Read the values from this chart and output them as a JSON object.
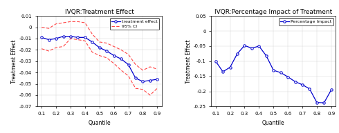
{
  "quantiles": [
    0.1,
    0.15,
    0.2,
    0.25,
    0.3,
    0.35,
    0.4,
    0.45,
    0.5,
    0.55,
    0.6,
    0.65,
    0.7,
    0.75,
    0.8,
    0.85,
    0.9
  ],
  "treatment_effect": [
    -0.009,
    -0.011,
    -0.01,
    -0.008,
    -0.008,
    -0.009,
    -0.009,
    -0.013,
    -0.018,
    -0.021,
    -0.025,
    -0.028,
    -0.033,
    -0.045,
    -0.048,
    -0.047,
    -0.046
  ],
  "ci_upper": [
    0.0,
    -0.001,
    0.003,
    0.004,
    0.005,
    0.005,
    0.004,
    -0.006,
    -0.013,
    -0.014,
    -0.017,
    -0.02,
    -0.024,
    -0.033,
    -0.038,
    -0.035,
    -0.037
  ],
  "ci_lower": [
    -0.019,
    -0.021,
    -0.018,
    -0.017,
    -0.01,
    -0.011,
    -0.012,
    -0.022,
    -0.025,
    -0.027,
    -0.032,
    -0.038,
    -0.043,
    -0.054,
    -0.055,
    -0.06,
    -0.054
  ],
  "percentage_impact": [
    -0.1,
    -0.135,
    -0.12,
    -0.075,
    -0.048,
    -0.057,
    -0.05,
    -0.082,
    -0.13,
    -0.138,
    -0.152,
    -0.168,
    -0.178,
    -0.192,
    -0.237,
    -0.238,
    -0.195
  ],
  "left_title": "IVQR:Treatment Effect",
  "right_title": "IVQR:Percentage Impact of Treatment",
  "xlabel": "Quantile",
  "ylabel": "Treatment Effect",
  "left_ylim": [
    -0.07,
    0.01
  ],
  "right_ylim": [
    -0.25,
    0.05
  ],
  "xticks": [
    0.1,
    0.2,
    0.3,
    0.4,
    0.5,
    0.6,
    0.7,
    0.8,
    0.9
  ],
  "left_yticks": [
    -0.07,
    -0.06,
    -0.05,
    -0.04,
    -0.03,
    -0.02,
    -0.01,
    0,
    0.01
  ],
  "right_yticks": [
    -0.25,
    -0.2,
    -0.15,
    -0.1,
    -0.05,
    0,
    0.05
  ],
  "line_color": "#0000CD",
  "ci_color": "#FF4444",
  "marker": "o",
  "marker_size": 2.5,
  "linewidth": 0.9,
  "legend_treatment": "treatment effect",
  "legend_ci": "95% CI",
  "legend_pct": "Percentage Impact",
  "title_fontsize": 6.5,
  "label_fontsize": 5.5,
  "tick_fontsize": 5,
  "legend_fontsize": 4.5
}
